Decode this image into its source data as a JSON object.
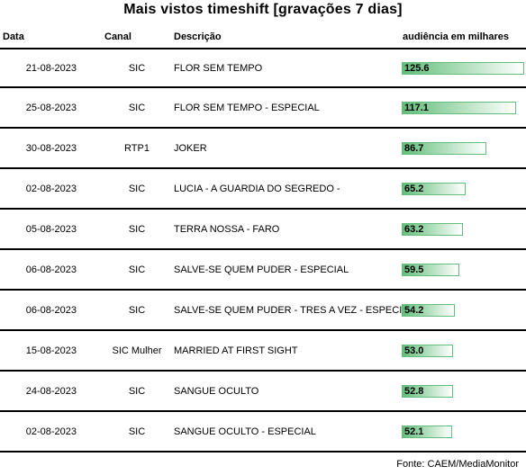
{
  "title": "Mais vistos timeshift [gravações 7 dias]",
  "columns": {
    "date": "Data",
    "channel": "Canal",
    "description": "Descrição",
    "audience": "audiência em milhares"
  },
  "bar_colors": {
    "start": "#63be7b",
    "mid": "#a8dbb5",
    "end": "#ffffff"
  },
  "rows": [
    {
      "date": "21-08-2023",
      "channel": "SIC",
      "description": "FLOR SEM TEMPO",
      "audience": "125.6"
    },
    {
      "date": "25-08-2023",
      "channel": "SIC",
      "description": "FLOR SEM TEMPO - ESPECIAL",
      "audience": "117.1"
    },
    {
      "date": "30-08-2023",
      "channel": "RTP1",
      "description": "JOKER",
      "audience": "86.7"
    },
    {
      "date": "02-08-2023",
      "channel": "SIC",
      "description": "LUCIA - A GUARDIA DO SEGREDO -",
      "audience": "65.2"
    },
    {
      "date": "05-08-2023",
      "channel": "SIC",
      "description": "TERRA NOSSA - FARO",
      "audience": "63.2"
    },
    {
      "date": "06-08-2023",
      "channel": "SIC",
      "description": "SALVE-SE QUEM PUDER - ESPECIAL",
      "audience": "59.5"
    },
    {
      "date": "06-08-2023",
      "channel": "SIC",
      "description": "SALVE-SE QUEM PUDER - TRES A VEZ - ESPECIAL",
      "audience": "54.2"
    },
    {
      "date": "15-08-2023",
      "channel": "SIC Mulher",
      "description": "MARRIED AT FIRST SIGHT",
      "audience": "53.0"
    },
    {
      "date": "24-08-2023",
      "channel": "SIC",
      "description": "SANGUE OCULTO",
      "audience": "52.8"
    },
    {
      "date": "02-08-2023",
      "channel": "SIC",
      "description": "SANGUE OCULTO - ESPECIAL",
      "audience": "52.1"
    }
  ],
  "source": "Fonte: CAEM/MediaMonitor"
}
